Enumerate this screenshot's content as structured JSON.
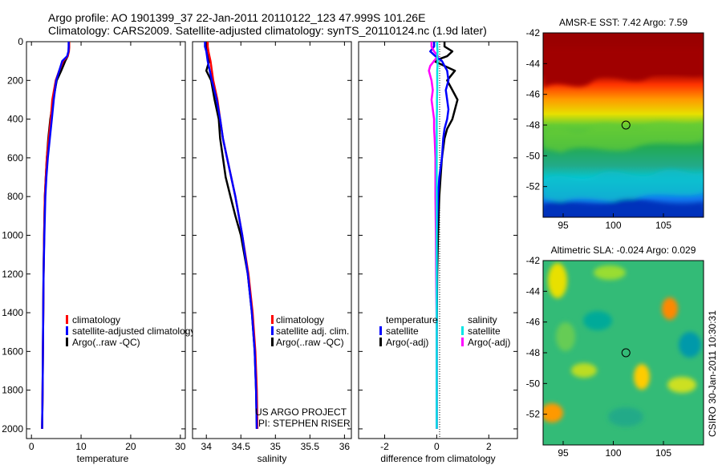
{
  "title_line1": "Argo profile: AO 1901399_37 22-Jan-2011 20110122_123 47.999S 101.26E",
  "title_line2": "Climatology: CARS2009. Satellite-adjusted climatology: synTS_20110124.nc (1.9d later)",
  "side_stamp": "CSIRO 30-Jan-2011 10:30:31",
  "colors": {
    "climatology": "#ff0000",
    "satellite": "#0000ff",
    "argo": "#000000",
    "salinity_satellite": "#00e5e5",
    "salinity_argo": "#ff00ff"
  },
  "chart_data": [
    {
      "type": "line",
      "id": "temperature",
      "xlabel": "temperature",
      "ylabel": "",
      "xlim": [
        -1,
        31
      ],
      "ylim": [
        2050,
        0
      ],
      "xticks": [
        0,
        10,
        20,
        30
      ],
      "yticks": [
        0,
        200,
        400,
        600,
        800,
        1000,
        1200,
        1400,
        1600,
        1800,
        2000
      ],
      "depth": [
        0,
        25,
        50,
        75,
        100,
        150,
        200,
        300,
        400,
        500,
        600,
        700,
        800,
        1000,
        1200,
        1500,
        1800,
        2000
      ],
      "series": [
        {
          "name": "climatology",
          "values": [
            7.6,
            7.6,
            7.55,
            7.3,
            6.4,
            5.6,
            4.9,
            4.2,
            3.9,
            3.5,
            3.1,
            2.9,
            2.7,
            2.55,
            2.45,
            2.35,
            2.25,
            2.15
          ]
        },
        {
          "name": "satellite-adjusted climatology",
          "values": [
            7.5,
            7.5,
            7.45,
            7.2,
            6.2,
            5.6,
            5.0,
            4.5,
            4.1,
            3.7,
            3.3,
            3.0,
            2.8,
            2.6,
            2.45,
            2.35,
            2.25,
            2.15
          ]
        },
        {
          "name": "Argo(..raw -QC)",
          "values": [
            7.6,
            7.6,
            7.5,
            7.3,
            6.8,
            6.0,
            5.1,
            4.4,
            3.8,
            3.4,
            3.1,
            2.9,
            2.7,
            2.55,
            2.45,
            2.35,
            2.25,
            2.15
          ]
        }
      ],
      "legend": {
        "position": "lower-center",
        "entries": [
          "climatology",
          "satellite-adjusted climatology",
          "Argo(..raw -QC)"
        ]
      }
    },
    {
      "type": "line",
      "id": "salinity",
      "xlabel": "salinity",
      "xlim": [
        33.8,
        36.1
      ],
      "ylim": [
        2050,
        0
      ],
      "xticks": [
        34,
        34.5,
        35,
        35.5,
        36
      ],
      "depth": [
        0,
        25,
        50,
        100,
        150,
        200,
        300,
        400,
        500,
        600,
        700,
        800,
        900,
        1000,
        1200,
        1400,
        1600,
        1800,
        2000
      ],
      "series": [
        {
          "name": "climatology",
          "values": [
            34.02,
            34.02,
            34.03,
            34.06,
            34.08,
            34.1,
            34.16,
            34.2,
            34.24,
            34.3,
            34.36,
            34.42,
            34.47,
            34.52,
            34.61,
            34.67,
            34.71,
            34.73,
            34.74
          ]
        },
        {
          "name": "satellite adj. clim.",
          "values": [
            33.98,
            33.98,
            34.0,
            34.02,
            34.05,
            34.08,
            34.15,
            34.2,
            34.24,
            34.3,
            34.36,
            34.42,
            34.47,
            34.52,
            34.6,
            34.66,
            34.7,
            34.72,
            34.73
          ]
        },
        {
          "name": "Argo(..raw -QC)",
          "values": [
            34.0,
            34.0,
            34.01,
            34.04,
            34.0,
            34.07,
            34.12,
            34.18,
            34.2,
            34.24,
            34.28,
            34.35,
            34.42,
            34.5,
            34.6,
            34.66,
            34.7,
            34.72,
            34.73
          ]
        }
      ],
      "legend": {
        "position": "lower-center",
        "entries": [
          "climatology",
          "satellite adj. clim.",
          "Argo(..raw -QC)"
        ]
      },
      "annotations": [
        "US ARGO PROJECT",
        "PI: STEPHEN RISER"
      ]
    },
    {
      "type": "line",
      "id": "difference",
      "xlabel": "difference from climatology",
      "xlim": [
        -3,
        3.1
      ],
      "ylim": [
        2050,
        0
      ],
      "xticks": [
        -2,
        0,
        2
      ],
      "depth": [
        0,
        25,
        50,
        75,
        100,
        125,
        150,
        200,
        250,
        300,
        350,
        400,
        450,
        500,
        600,
        700,
        800,
        1000,
        1200,
        1500,
        1800,
        2000
      ],
      "series": [
        {
          "group": "temperature",
          "name": "satellite",
          "values": [
            -0.1,
            -0.1,
            -0.25,
            -0.05,
            0.2,
            0.3,
            0.4,
            0.45,
            0.35,
            0.4,
            0.45,
            0.4,
            0.3,
            0.25,
            0.2,
            0.1,
            0.05,
            0.0,
            0.0,
            0.0,
            0.0,
            0.0
          ]
        },
        {
          "group": "temperature",
          "name": "Argo(-adj)",
          "values": [
            0.3,
            0.3,
            0.6,
            0.4,
            -0.1,
            0.3,
            0.7,
            0.4,
            0.6,
            0.8,
            0.7,
            0.6,
            0.4,
            0.3,
            0.2,
            0.15,
            0.1,
            0.05,
            0.02,
            0.0,
            0.0,
            0.0
          ]
        },
        {
          "group": "salinity",
          "name": "satellite",
          "values": [
            0.02,
            0.02,
            0.03,
            0.02,
            0.03,
            0.03,
            0.02,
            0.02,
            0.02,
            0.01,
            0.01,
            0.0,
            0.0,
            0.0,
            0.0,
            0.0,
            0.0,
            0.0,
            0.0,
            0.0,
            0.0,
            0.0
          ]
        },
        {
          "group": "salinity",
          "name": "Argo(-adj)",
          "values": [
            -0.2,
            -0.2,
            -0.1,
            0.05,
            -0.1,
            -0.25,
            -0.3,
            -0.2,
            -0.15,
            -0.2,
            -0.15,
            -0.1,
            -0.1,
            -0.08,
            -0.05,
            -0.05,
            -0.05,
            -0.03,
            -0.02,
            0.0,
            0.0,
            0.0
          ]
        }
      ],
      "legend": {
        "position": "lower-center",
        "groups": [
          "temperature",
          "salinity"
        ],
        "entries": [
          "satellite",
          "Argo(-adj)",
          "satellite",
          "Argo(-adj)"
        ]
      }
    },
    {
      "type": "heatmap",
      "id": "amsr-sst",
      "title": "AMSR-E SST: 7.42 Argo: 7.59",
      "xlim": [
        93,
        109
      ],
      "ylim": [
        -54,
        -42
      ],
      "xticks": [
        95,
        100,
        105
      ],
      "yticks": [
        -42,
        -44,
        -46,
        -48,
        -50,
        -52
      ],
      "marker": {
        "lon": 101.26,
        "lat": -48.0
      }
    },
    {
      "type": "heatmap",
      "id": "altimetric-sla",
      "title": "Altimetric SLA: -0.024 Argo: 0.029",
      "xlim": [
        93,
        109
      ],
      "ylim": [
        -54,
        -42
      ],
      "xticks": [
        95,
        100,
        105
      ],
      "yticks": [
        -42,
        -44,
        -46,
        -48,
        -50,
        -52
      ],
      "marker": {
        "lon": 101.26,
        "lat": -48.0
      }
    }
  ]
}
